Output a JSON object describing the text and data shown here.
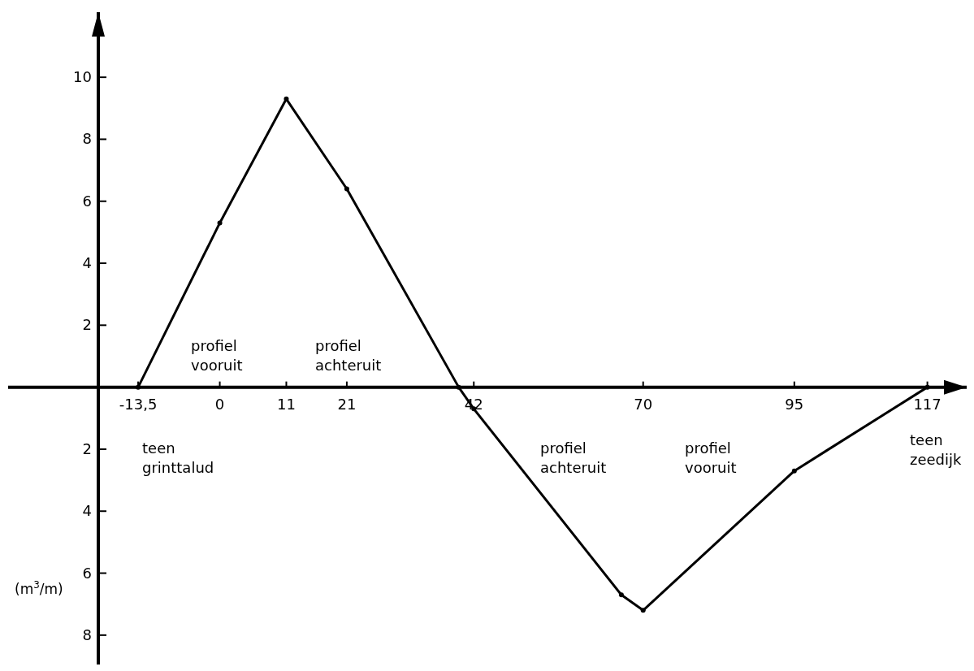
{
  "chart_data": {
    "type": "line",
    "ylabel": "(m$^{3}$/m)",
    "xlim": [
      -35,
      123.5
    ],
    "ylim": [
      -9,
      12.1
    ],
    "xticks": [
      {
        "value": -13.5,
        "label": "-13,5"
      },
      0,
      11,
      21,
      42,
      70,
      95,
      117
    ],
    "yticks": [
      {
        "value": -8,
        "label": "8"
      },
      {
        "value": -6,
        "label": "6"
      },
      {
        "value": -4,
        "label": "4"
      },
      {
        "value": -2,
        "label": "2"
      },
      2,
      4,
      6,
      8,
      10
    ],
    "series": [
      {
        "color": "#000000",
        "x": [
          -13.5,
          0,
          11,
          21,
          39.5,
          42,
          66.4,
          70,
          95,
          117
        ],
        "values": [
          0,
          5.3,
          9.3,
          6.4,
          0,
          -0.7,
          -6.7,
          -7.2,
          -2.7,
          0
        ]
      }
    ],
    "marker": "circle",
    "line_style": "solid",
    "annotations": [
      "profiel\nvooruit",
      "profiel\nachteruit",
      "teen\ngrinttalud",
      "profiel\nachteruit",
      "profiel\nvooruit",
      "teen\nzeedijk"
    ]
  }
}
